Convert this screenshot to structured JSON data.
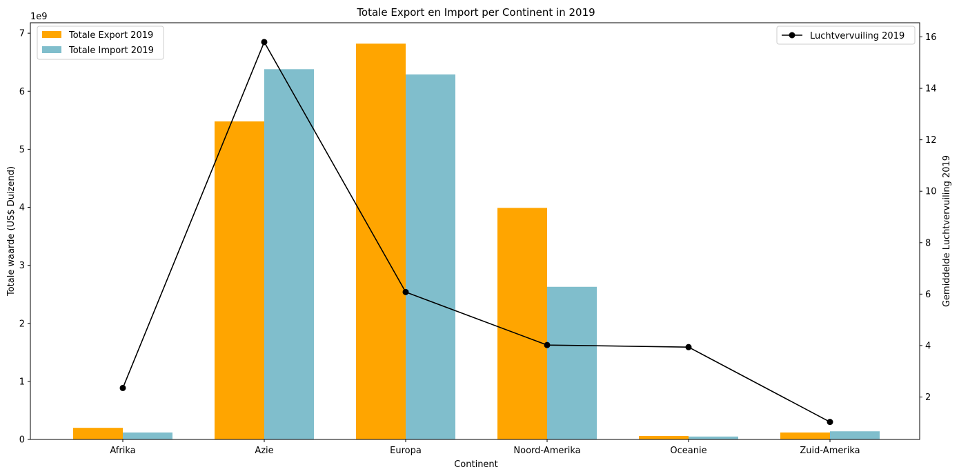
{
  "chart_data": {
    "type": "bar",
    "title": "Totale Export en Import per Continent in 2019",
    "xlabel": "Continent",
    "ylabel_left": "Totale waarde (US$ Duizend)",
    "ylabel_right": "Gemiddelde Luchtvervuiling 2019",
    "y_left_offset_label": "1e9",
    "categories": [
      "Afrika",
      "Azie",
      "Europa",
      "Noord-Amerika",
      "Oceanie",
      "Zuid-Amerika"
    ],
    "series": [
      {
        "name": "Totale Export 2019",
        "axis": "left",
        "kind": "bar",
        "color": "#FFA500",
        "values": [
          200000000.0,
          5480000000.0,
          6820000000.0,
          3990000000.0,
          60000000.0,
          120000000.0
        ]
      },
      {
        "name": "Totale Import 2019",
        "axis": "left",
        "kind": "bar",
        "color": "#80BECC",
        "values": [
          120000000.0,
          6380000000.0,
          6290000000.0,
          2630000000.0,
          50000000.0,
          140000000.0
        ]
      },
      {
        "name": "Luchtvervuiling 2019",
        "axis": "right",
        "kind": "line",
        "color": "#000000",
        "values": [
          2.35,
          15.8,
          6.08,
          4.02,
          3.94,
          1.03
        ]
      }
    ],
    "ylim_left": [
      0,
      7180000000.0
    ],
    "ylim_right": [
      0.35,
      16.55
    ],
    "yticks_left": [
      "0",
      "1",
      "2",
      "3",
      "4",
      "5",
      "6",
      "7"
    ],
    "yticks_right": [
      "2",
      "4",
      "6",
      "8",
      "10",
      "12",
      "14",
      "16"
    ],
    "grid": false,
    "legend_left": "top-left",
    "legend_right": "top-right"
  }
}
